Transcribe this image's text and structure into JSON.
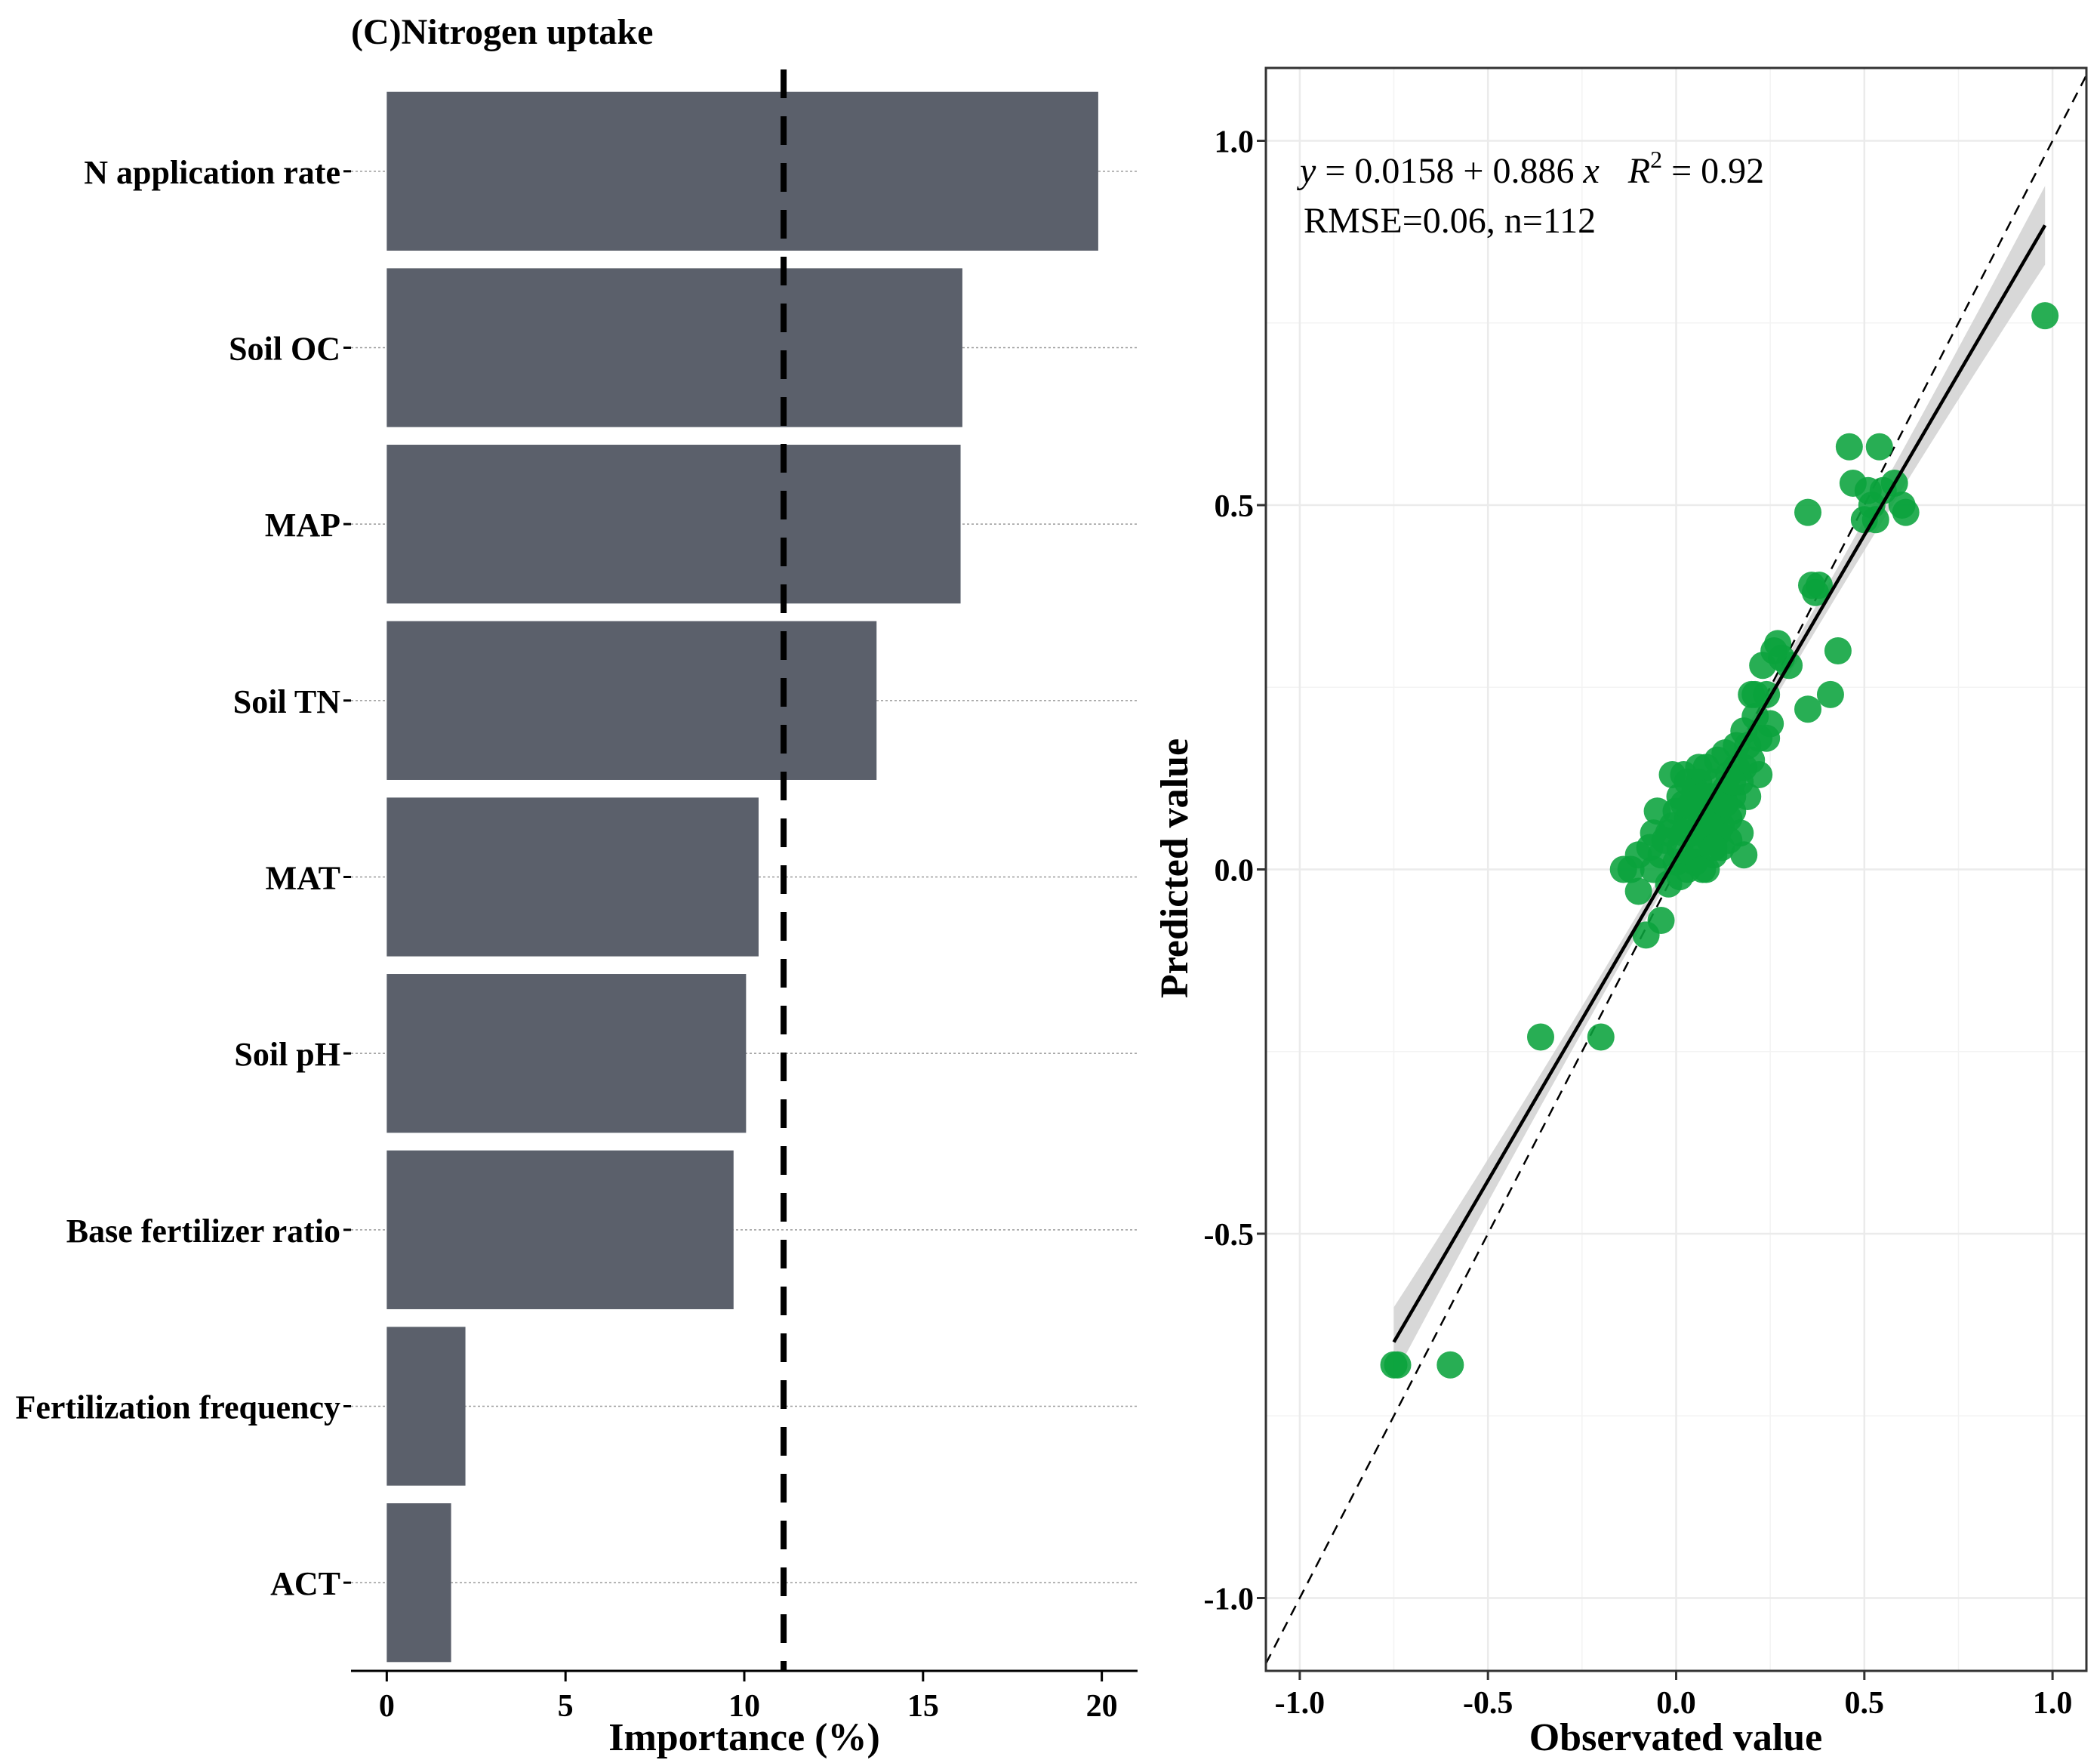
{
  "chart_data": [
    {
      "type": "bar",
      "orientation": "horizontal",
      "title": "(C)Nitrogen uptake",
      "xlabel": "Importance (%)",
      "ylabel": "",
      "xlim": [
        -1,
        21
      ],
      "xticks": [
        0,
        5,
        10,
        15,
        20
      ],
      "xtick_labels": [
        "0",
        "5",
        "10",
        "15",
        "20"
      ],
      "categories": [
        "N application rate",
        "Soil OC",
        "MAP",
        "Soil TN",
        "MAT",
        "Soil pH",
        "Base fertilizer ratio",
        "Fertilization frequency",
        "ACT"
      ],
      "values": [
        19.9,
        16.1,
        16.05,
        13.7,
        10.4,
        10.05,
        9.7,
        2.2,
        1.8
      ],
      "threshold_line": {
        "value": 11.1,
        "style": "dashed"
      },
      "colors": {
        "bar": "#5b606b",
        "threshold": "#000000"
      }
    },
    {
      "type": "scatter",
      "xlabel": "Observated value",
      "ylabel": "Predicted value",
      "xlim": [
        -1.09,
        1.09
      ],
      "ylim": [
        -1.1,
        1.1
      ],
      "xticks": [
        -1.0,
        -0.5,
        0.0,
        0.5,
        1.0
      ],
      "yticks": [
        -1.0,
        -0.5,
        0.0,
        0.5,
        1.0
      ],
      "xtick_labels": [
        "-1.0",
        "-0.5",
        "0.0",
        "0.5",
        "1.0"
      ],
      "ytick_labels": [
        "-1.0",
        "-0.5",
        "0.0",
        "0.5",
        "1.0"
      ],
      "equation": {
        "y": "y",
        "eq1": " = 0.0158 + 0.886 ",
        "x": "x",
        "r": "R",
        "sup": "2",
        "eq2": " = 0.92"
      },
      "annotation2": "RMSE=0.06, n=112",
      "fit": {
        "intercept": 0.0158,
        "slope": 0.886,
        "x_range": [
          -0.75,
          0.98
        ],
        "r2": 0.92
      },
      "reference_line": {
        "slope": 1,
        "intercept": 0,
        "style": "dashed"
      },
      "colors": {
        "points": "#0aa33c",
        "fit": "#000000",
        "ribbon": "#d4d4d4",
        "grid": "#ebebeb"
      },
      "points": [
        [
          -0.75,
          -0.68
        ],
        [
          -0.74,
          -0.68
        ],
        [
          -0.6,
          -0.68
        ],
        [
          -0.36,
          -0.23
        ],
        [
          -0.2,
          -0.23
        ],
        [
          -0.08,
          -0.09
        ],
        [
          -0.04,
          -0.07
        ],
        [
          -0.14,
          0.0
        ],
        [
          -0.12,
          0.0
        ],
        [
          -0.1,
          -0.03
        ],
        [
          -0.1,
          0.02
        ],
        [
          -0.07,
          0.03
        ],
        [
          -0.06,
          0.0
        ],
        [
          -0.05,
          0.08
        ],
        [
          -0.04,
          0.02
        ],
        [
          -0.03,
          0.04
        ],
        [
          -0.02,
          -0.02
        ],
        [
          -0.01,
          0.13
        ],
        [
          -0.01,
          0.06
        ],
        [
          0.0,
          0.01
        ],
        [
          0.0,
          0.08
        ],
        [
          0.01,
          0.03
        ],
        [
          0.01,
          0.1
        ],
        [
          0.02,
          0.05
        ],
        [
          0.02,
          0.13
        ],
        [
          0.03,
          0.0
        ],
        [
          0.03,
          0.07
        ],
        [
          0.04,
          0.09
        ],
        [
          0.04,
          0.02
        ],
        [
          0.05,
          0.11
        ],
        [
          0.05,
          0.06
        ],
        [
          0.05,
          0.01
        ],
        [
          0.06,
          0.03
        ],
        [
          0.06,
          0.08
        ],
        [
          0.06,
          0.12
        ],
        [
          0.07,
          0.0
        ],
        [
          0.07,
          0.05
        ],
        [
          0.08,
          0.09
        ],
        [
          0.08,
          0.14
        ],
        [
          0.09,
          0.04
        ],
        [
          0.09,
          0.1
        ],
        [
          0.1,
          0.07
        ],
        [
          0.1,
          0.02
        ],
        [
          0.1,
          0.12
        ],
        [
          0.11,
          0.05
        ],
        [
          0.11,
          0.15
        ],
        [
          0.12,
          0.09
        ],
        [
          0.12,
          0.03
        ],
        [
          0.13,
          0.11
        ],
        [
          0.13,
          0.16
        ],
        [
          0.14,
          0.07
        ],
        [
          0.14,
          0.13
        ],
        [
          0.15,
          0.08
        ],
        [
          0.15,
          0.1
        ],
        [
          0.16,
          0.17
        ],
        [
          0.17,
          0.12
        ],
        [
          0.17,
          0.05
        ],
        [
          0.18,
          0.14
        ],
        [
          0.18,
          0.02
        ],
        [
          0.19,
          0.1
        ],
        [
          0.2,
          0.15
        ],
        [
          0.2,
          0.24
        ],
        [
          0.21,
          0.24
        ],
        [
          0.22,
          0.18
        ],
        [
          0.22,
          0.13
        ],
        [
          0.23,
          0.28
        ],
        [
          0.24,
          0.18
        ],
        [
          0.24,
          0.24
        ],
        [
          0.25,
          0.2
        ],
        [
          0.26,
          0.3
        ],
        [
          0.27,
          0.31
        ],
        [
          0.28,
          0.29
        ],
        [
          0.3,
          0.28
        ],
        [
          0.35,
          0.22
        ],
        [
          0.35,
          0.49
        ],
        [
          0.36,
          0.39
        ],
        [
          0.37,
          0.38
        ],
        [
          0.38,
          0.39
        ],
        [
          0.41,
          0.24
        ],
        [
          0.43,
          0.3
        ],
        [
          0.46,
          0.58
        ],
        [
          0.47,
          0.53
        ],
        [
          0.5,
          0.48
        ],
        [
          0.51,
          0.52
        ],
        [
          0.52,
          0.5
        ],
        [
          0.53,
          0.48
        ],
        [
          0.54,
          0.58
        ],
        [
          0.55,
          0.52
        ],
        [
          0.58,
          0.53
        ],
        [
          0.6,
          0.5
        ],
        [
          0.61,
          0.49
        ],
        [
          0.98,
          0.76
        ],
        [
          0.12,
          0.06
        ],
        [
          0.08,
          0.0
        ],
        [
          0.03,
          0.12
        ],
        [
          -0.02,
          0.05
        ],
        [
          0.16,
          0.14
        ],
        [
          0.19,
          0.17
        ],
        [
          0.07,
          0.1
        ],
        [
          0.14,
          0.04
        ],
        [
          0.02,
          0.09
        ],
        [
          0.11,
          0.08
        ],
        [
          0.09,
          0.06
        ],
        [
          0.04,
          0.05
        ],
        [
          0.13,
          0.09
        ],
        [
          0.06,
          0.14
        ],
        [
          0.21,
          0.21
        ],
        [
          0.01,
          -0.01
        ],
        [
          0.15,
          0.12
        ],
        [
          0.18,
          0.19
        ],
        [
          -0.06,
          0.05
        ],
        [
          0.1,
          0.03
        ]
      ]
    }
  ]
}
